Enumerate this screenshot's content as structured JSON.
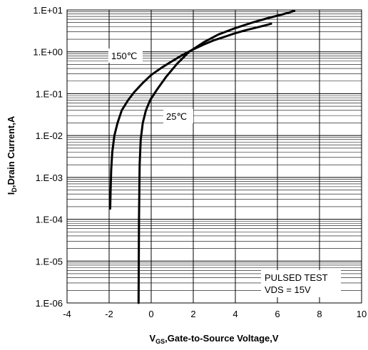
{
  "chart_data": {
    "type": "line",
    "xlabel": {
      "main": "V",
      "sub": "GS",
      "rest": ",Gate-to-Source Voltage,V"
    },
    "ylabel": {
      "main": "I",
      "sub": "D",
      "rest": ",Drain Current,A"
    },
    "xlim": [
      -4,
      10
    ],
    "ylim": [
      1e-06,
      10
    ],
    "yscale": "log",
    "x_ticks": [
      "-4",
      "-2",
      "0",
      "2",
      "4",
      "6",
      "8",
      "10"
    ],
    "y_ticks": [
      "1.E-06",
      "1.E-05",
      "1.E-04",
      "1.E-03",
      "1.E-02",
      "1.E-01",
      "1.E+00",
      "1.E+01"
    ],
    "grid": true,
    "colors": {
      "line": "#000000",
      "grid": "#000000",
      "background": "#ffffff"
    },
    "series": [
      {
        "name": "150℃",
        "x": [
          -1.95,
          -1.93,
          -1.9,
          -1.85,
          -1.75,
          -1.6,
          -1.4,
          -1.1,
          -0.8,
          -0.4,
          0,
          0.5,
          1,
          1.5,
          2,
          2.5,
          3,
          3.5,
          4,
          4.5,
          5,
          5.5,
          5.7
        ],
        "y": [
          0.00018,
          0.0005,
          0.0015,
          0.004,
          0.01,
          0.02,
          0.04,
          0.07,
          0.11,
          0.18,
          0.28,
          0.42,
          0.6,
          0.85,
          1.15,
          1.5,
          1.9,
          2.3,
          2.8,
          3.3,
          3.8,
          4.4,
          4.7
        ]
      },
      {
        "name": "25℃",
        "x": [
          -0.6,
          -0.58,
          -0.55,
          -0.5,
          -0.4,
          -0.25,
          -0.05,
          0.3,
          0.7,
          1.2,
          1.8,
          2.5,
          3.2,
          4,
          4.8,
          5.6,
          6.3,
          6.8
        ],
        "y": [
          1e-06,
          0.0001,
          0.002,
          0.008,
          0.02,
          0.04,
          0.07,
          0.13,
          0.25,
          0.5,
          1.0,
          1.7,
          2.6,
          3.7,
          5.0,
          6.5,
          8.0,
          9.5
        ]
      }
    ],
    "annotations": {
      "label_150": "150℃",
      "label_25": "25℃",
      "test_line1": "PULSED TEST",
      "test_line2": "VDS = 15V"
    }
  }
}
